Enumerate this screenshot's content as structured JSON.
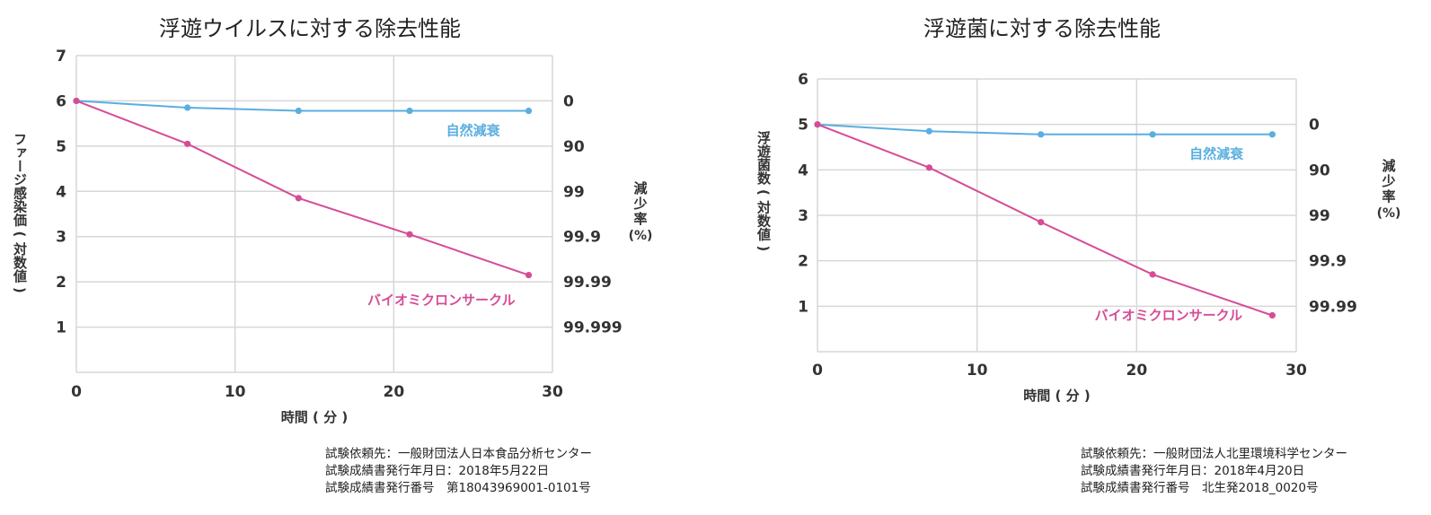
{
  "colors": {
    "natural": "#5aaee0",
    "product": "#d64c96",
    "grid": "#d7d7d7",
    "axis": "#333333"
  },
  "chart_data": [
    {
      "type": "line",
      "title": "浮遊ウイルスに対する除去性能",
      "xlabel": "時間 ( 分 )",
      "ylabel": "ファージ感染価 ( 対数値 )",
      "y2label": "減少率 (%)",
      "xlim": [
        0,
        30
      ],
      "ylim": [
        0,
        7
      ],
      "x_ticks": [
        "0",
        "10",
        "20",
        "30"
      ],
      "y_ticks": [
        "1",
        "2",
        "3",
        "4",
        "5",
        "6",
        "7"
      ],
      "y2_ticks": [
        {
          "label": "0",
          "at": 6
        },
        {
          "label": "90",
          "at": 5
        },
        {
          "label": "99",
          "at": 4
        },
        {
          "label": "99.9",
          "at": 3
        },
        {
          "label": "99.99",
          "at": 2
        },
        {
          "label": "99.999",
          "at": 1
        }
      ],
      "grid": true,
      "series": [
        {
          "name": "自然減衰",
          "color_key": "natural",
          "label_at": [
            25,
            5.25
          ],
          "x": [
            0,
            7,
            14,
            21,
            28.5
          ],
          "y": [
            6.0,
            5.85,
            5.78,
            5.78,
            5.78
          ]
        },
        {
          "name": "バイオミクロンサークル",
          "color_key": "product",
          "label_at": [
            23,
            1.5
          ],
          "x": [
            0,
            7,
            14,
            21,
            28.5
          ],
          "y": [
            6.0,
            5.05,
            3.85,
            3.05,
            2.15
          ]
        }
      ],
      "credits": [
        "試験依頼先：一般財団法人日本食品分析センター",
        "試験成績書発行年月日：2018年5月22日",
        "試験成績書発行番号　第18043969001-0101号"
      ]
    },
    {
      "type": "line",
      "title": "浮遊菌に対する除去性能",
      "xlabel": "時間 ( 分 )",
      "ylabel": "浮遊菌数 ( 対数値 )",
      "y2label": "減少率 (%)",
      "xlim": [
        0,
        30
      ],
      "ylim": [
        0,
        6
      ],
      "x_ticks": [
        "0",
        "10",
        "20",
        "30"
      ],
      "y_ticks": [
        "1",
        "2",
        "3",
        "4",
        "5",
        "6"
      ],
      "y2_ticks": [
        {
          "label": "0",
          "at": 5
        },
        {
          "label": "90",
          "at": 4
        },
        {
          "label": "99",
          "at": 3
        },
        {
          "label": "99.9",
          "at": 2
        },
        {
          "label": "99.99",
          "at": 1
        }
      ],
      "grid": true,
      "series": [
        {
          "name": "自然減衰",
          "color_key": "natural",
          "label_at": [
            25,
            4.25
          ],
          "x": [
            0,
            7,
            14,
            21,
            28.5
          ],
          "y": [
            5.0,
            4.85,
            4.78,
            4.78,
            4.78
          ]
        },
        {
          "name": "バイオミクロンサークル",
          "color_key": "product",
          "label_at": [
            22,
            0.7
          ],
          "x": [
            0,
            7,
            14,
            21,
            28.5
          ],
          "y": [
            5.0,
            4.05,
            2.85,
            1.7,
            0.8
          ]
        }
      ],
      "credits": [
        "試験依頼先：一般財団法人北里環境科学センター",
        "試験成績書発行年月日：2018年4月20日",
        "試験成績書発行番号　北生発2018_0020号"
      ]
    }
  ]
}
